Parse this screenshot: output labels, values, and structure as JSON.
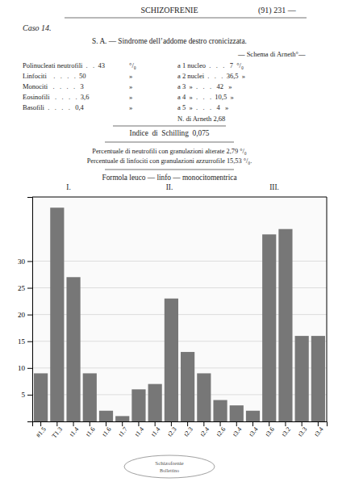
{
  "chart_data": {
    "type": "bar",
    "title": "SCHIZOFRENIE",
    "subtitle": "S. A. — Sindrome dell’addome destro cronicizzata.",
    "annotations": [
      "(91) 231 —",
      "Caso 14.",
      "— Schema di Arneth°—",
      "Polinucleati neutrofili  .   .  43",
      "°/₀",
      "Linfociti    .   .   .   .  50",
      "»",
      "Monociti   .   .   .   .   3",
      "»",
      "Eosinofili   .   .   .   .  3,6",
      "»",
      "Basofili  .   .   .   .   0,4",
      "»",
      "a 1 nucleo  .   .   .   7  °/₀",
      "a 2 nuclei  .   .   .  36,5  »",
      "a 3  »  .   .   .   42   »",
      "a 4  »  .   .   .  10,5  »",
      "a 5  »  .   .   .   4   »",
      "N. di Arneth 2,68",
      "Indice  di  Schilling  0,075",
      "Percentuale di neutrofili con granulazioni alterate 2,79 °/₀",
      "Percentuale di linfociti con granulazioni azzurrofile 15,53 °/₀.",
      "Formola leuco — linfo — monocitomentrica",
      "I.",
      "II.",
      "III.",
      "Schizofrenie",
      "Bollettino"
    ],
    "categories": [
      "#1.5",
      "T1.3",
      "t1.4",
      "t1.6",
      "t1.6",
      "t1.7",
      "t1.4",
      "t1.4",
      "t2.3",
      "t2.3",
      "t2.4",
      "t2.6",
      "t3.4",
      "t3.4",
      "t3.6",
      "t3.2",
      "t3.3",
      "t3.4"
    ],
    "values": [
      9,
      40,
      27,
      9,
      2,
      1,
      6,
      7,
      23,
      13,
      9,
      4,
      3,
      2,
      35,
      36,
      16,
      16
    ],
    "color": "#777777",
    "ylim": [
      0,
      42
    ],
    "yticks": [
      5,
      10,
      15,
      20,
      25,
      30
    ],
    "grid": true
  }
}
